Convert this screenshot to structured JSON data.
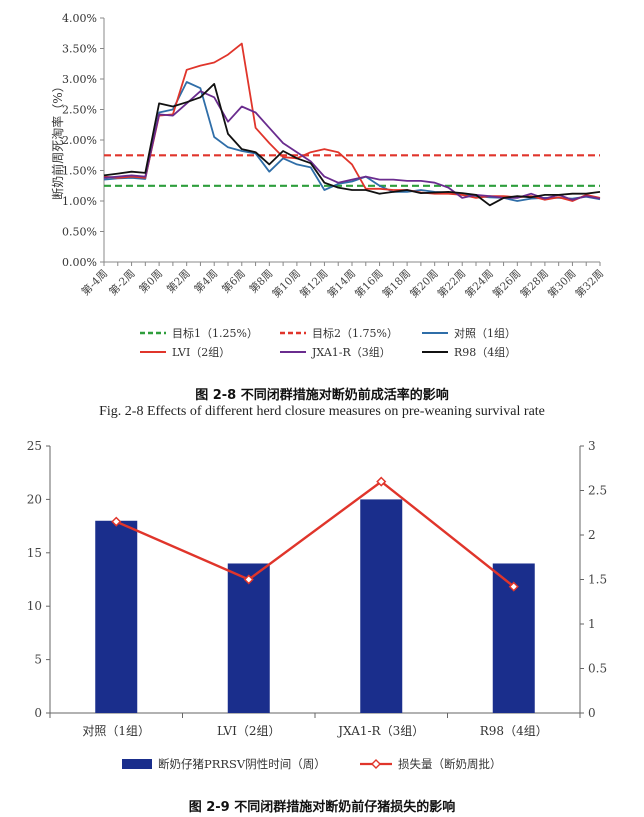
{
  "figure1": {
    "caption_zh": "图 2-8  不同闭群措施对断奶前成活率的影响",
    "caption_en": "Fig. 2-8 Effects of different herd closure measures on pre-weaning survival rate"
  },
  "figure2": {
    "caption_zh": "图 2-9  不同闭群措施对断奶前仔猪损失的影响"
  },
  "chart_data": [
    {
      "type": "line",
      "ylabel": "断奶前周死淘率（%）",
      "xlabel": "",
      "ylim": [
        0,
        4
      ],
      "ytick_labels": [
        "0.00%",
        "0.50%",
        "1.00%",
        "1.50%",
        "2.00%",
        "2.50%",
        "3.00%",
        "3.50%",
        "4.00%"
      ],
      "x": [
        -4,
        -3,
        -2,
        -1,
        0,
        1,
        2,
        3,
        4,
        5,
        6,
        7,
        8,
        9,
        10,
        11,
        12,
        13,
        14,
        15,
        16,
        17,
        18,
        19,
        20,
        21,
        22,
        23,
        24,
        25,
        26,
        27,
        28,
        29,
        30,
        31,
        32
      ],
      "xtick_labels": [
        "第-4周",
        "第-2周",
        "第0周",
        "第2周",
        "第4周",
        "第6周",
        "第8周",
        "第10周",
        "第12周",
        "第14周",
        "第16周",
        "第18周",
        "第20周",
        "第22周",
        "第24周",
        "第26周",
        "第28周",
        "第30周",
        "第32周"
      ],
      "legend_position": "bottom",
      "series": [
        {
          "name": "目标1（1.25%）",
          "color": "#2e9e3c",
          "dash": true,
          "values": [
            1.25,
            1.25,
            1.25,
            1.25,
            1.25,
            1.25,
            1.25,
            1.25,
            1.25,
            1.25,
            1.25,
            1.25,
            1.25,
            1.25,
            1.25,
            1.25,
            1.25,
            1.25,
            1.25,
            1.25,
            1.25,
            1.25,
            1.25,
            1.25,
            1.25,
            1.25,
            1.25,
            1.25,
            1.25,
            1.25,
            1.25,
            1.25,
            1.25,
            1.25,
            1.25,
            1.25,
            1.25
          ]
        },
        {
          "name": "目标2（1.75%）",
          "color": "#e0352b",
          "dash": true,
          "values": [
            1.75,
            1.75,
            1.75,
            1.75,
            1.75,
            1.75,
            1.75,
            1.75,
            1.75,
            1.75,
            1.75,
            1.75,
            1.75,
            1.75,
            1.75,
            1.75,
            1.75,
            1.75,
            1.75,
            1.75,
            1.75,
            1.75,
            1.75,
            1.75,
            1.75,
            1.75,
            1.75,
            1.75,
            1.75,
            1.75,
            1.75,
            1.75,
            1.75,
            1.75,
            1.75,
            1.75,
            1.75
          ]
        },
        {
          "name": "对照（1组）",
          "color": "#2f6ea8",
          "dash": false,
          "values": [
            1.35,
            1.37,
            1.38,
            1.36,
            2.45,
            2.5,
            2.95,
            2.85,
            2.05,
            1.88,
            1.82,
            1.78,
            1.48,
            1.7,
            1.6,
            1.55,
            1.18,
            1.28,
            1.32,
            1.4,
            1.25,
            1.15,
            1.15,
            1.18,
            1.15,
            1.14,
            1.1,
            1.08,
            1.06,
            1.05,
            1.0,
            1.04,
            1.05,
            1.05,
            1.04,
            1.07,
            1.03
          ]
        },
        {
          "name": "LVI（2组）",
          "color": "#e0352b",
          "dash": false,
          "values": [
            1.4,
            1.38,
            1.4,
            1.38,
            2.4,
            2.42,
            3.15,
            3.22,
            3.27,
            3.4,
            3.58,
            2.2,
            1.95,
            1.72,
            1.7,
            1.8,
            1.85,
            1.8,
            1.6,
            1.2,
            1.2,
            1.18,
            1.18,
            1.14,
            1.12,
            1.12,
            1.1,
            1.05,
            1.08,
            1.08,
            1.06,
            1.08,
            1.02,
            1.06,
            1.0,
            1.1,
            1.05
          ]
        },
        {
          "name": "JXA1-R（3组）",
          "color": "#6a2c8e",
          "dash": false,
          "values": [
            1.38,
            1.4,
            1.42,
            1.4,
            2.42,
            2.4,
            2.6,
            2.8,
            2.7,
            2.3,
            2.55,
            2.45,
            2.2,
            1.95,
            1.8,
            1.65,
            1.4,
            1.3,
            1.35,
            1.4,
            1.35,
            1.35,
            1.33,
            1.33,
            1.3,
            1.22,
            1.05,
            1.1,
            1.08,
            1.05,
            1.05,
            1.12,
            1.04,
            1.1,
            1.02,
            1.08,
            1.04
          ]
        },
        {
          "name": "R98（4组）",
          "color": "#111111",
          "dash": false,
          "values": [
            1.42,
            1.45,
            1.48,
            1.46,
            2.6,
            2.55,
            2.62,
            2.7,
            2.92,
            2.1,
            1.85,
            1.8,
            1.6,
            1.82,
            1.7,
            1.62,
            1.3,
            1.22,
            1.18,
            1.18,
            1.12,
            1.15,
            1.18,
            1.13,
            1.14,
            1.15,
            1.13,
            1.1,
            0.93,
            1.05,
            1.08,
            1.06,
            1.1,
            1.1,
            1.12,
            1.12,
            1.15
          ]
        }
      ]
    },
    {
      "type": "bar",
      "categories": [
        "对照（1组）",
        "LVI（2组）",
        "JXA1-R（3组）",
        "R98（4组）"
      ],
      "ylim": [
        0,
        25
      ],
      "ytick_labels": [
        "0",
        "5",
        "10",
        "15",
        "20",
        "25"
      ],
      "y2lim": [
        0,
        3
      ],
      "y2tick_labels": [
        "0",
        "0.5",
        "1",
        "1.5",
        "2",
        "2.5",
        "3"
      ],
      "legend_position": "bottom",
      "series": [
        {
          "name": "断奶仔猪PRRSV阴性时间（周）",
          "kind": "bar",
          "axis": "left",
          "color": "#1a2e8c",
          "values": [
            18,
            14,
            20,
            14
          ]
        },
        {
          "name": "损失量（断奶周批）",
          "kind": "line",
          "axis": "right",
          "color": "#e0352b",
          "values": [
            2.15,
            1.5,
            2.6,
            1.42
          ]
        }
      ]
    }
  ]
}
